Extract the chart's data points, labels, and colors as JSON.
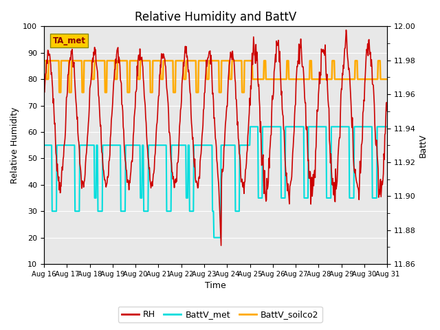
{
  "title": "Relative Humidity and BattV",
  "xlabel": "Time",
  "ylabel_left": "Relative Humidity",
  "ylabel_right": "BattV",
  "ylim_left": [
    10,
    100
  ],
  "ylim_right": [
    11.86,
    12.0
  ],
  "yticks_left": [
    10,
    20,
    30,
    40,
    50,
    60,
    70,
    80,
    90,
    100
  ],
  "yticks_right": [
    11.86,
    11.88,
    11.9,
    11.92,
    11.94,
    11.96,
    11.98,
    12.0
  ],
  "xtick_labels": [
    "Aug 16",
    "Aug 17",
    "Aug 18",
    "Aug 19",
    "Aug 20",
    "Aug 21",
    "Aug 22",
    "Aug 23",
    "Aug 24",
    "Aug 25",
    "Aug 26",
    "Aug 27",
    "Aug 28",
    "Aug 29",
    "Aug 30",
    "Aug 31"
  ],
  "color_RH": "#cc0000",
  "color_BattV_met": "#00dddd",
  "color_BattV_soilco2": "#ffaa00",
  "bg_color": "#e8e8e8",
  "annotation_text": "TA_met",
  "annotation_bg": "#ffcc00",
  "grid_color": "white",
  "title_fontsize": 12,
  "axis_fontsize": 9,
  "tick_fontsize": 8
}
